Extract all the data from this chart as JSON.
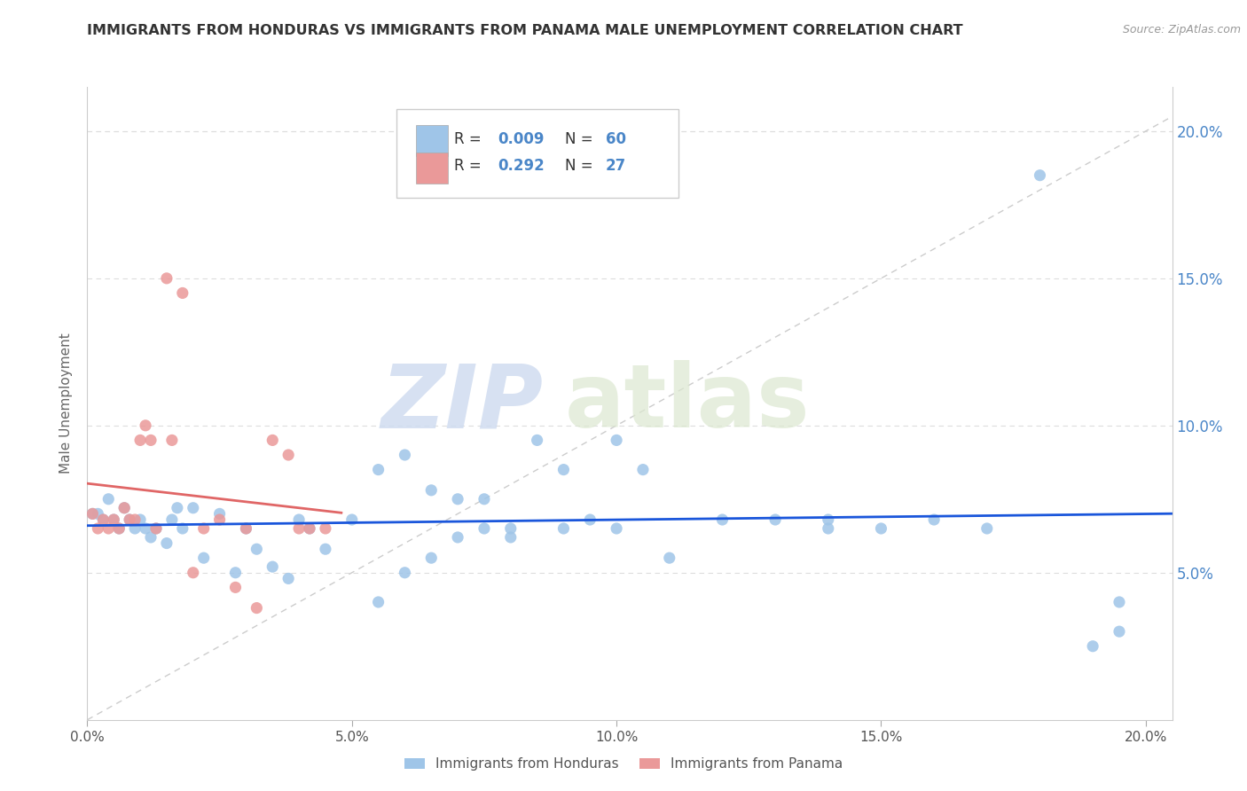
{
  "title": "IMMIGRANTS FROM HONDURAS VS IMMIGRANTS FROM PANAMA MALE UNEMPLOYMENT CORRELATION CHART",
  "source": "Source: ZipAtlas.com",
  "ylabel": "Male Unemployment",
  "xlim": [
    0.0,
    0.205
  ],
  "ylim": [
    0.0,
    0.215
  ],
  "xtick_vals": [
    0.0,
    0.05,
    0.1,
    0.15,
    0.2
  ],
  "xtick_labels": [
    "0.0%",
    "5.0%",
    "10.0%",
    "15.0%",
    "20.0%"
  ],
  "ytick_vals": [
    0.05,
    0.1,
    0.15,
    0.2
  ],
  "ytick_labels": [
    "5.0%",
    "10.0%",
    "15.0%",
    "20.0%"
  ],
  "color_honduras": "#9fc5e8",
  "color_panama": "#ea9999",
  "trendline_blue": "#1a56db",
  "trendline_pink": "#e06666",
  "diagonal_color": "#cccccc",
  "watermark_zip": "ZIP",
  "watermark_atlas": "atlas",
  "watermark_color": "#cdd9f0",
  "legend_r1_label": "R = ",
  "legend_r1_val": "0.009",
  "legend_n1_label": "N = ",
  "legend_n1_val": "60",
  "legend_r2_label": "R = ",
  "legend_r2_val": "0.292",
  "legend_n2_label": "N = ",
  "legend_n2_val": "27",
  "label_color": "#4a86c8",
  "series1_label": "Immigrants from Honduras",
  "series2_label": "Immigrants from Panama",
  "honduras_x": [
    0.001,
    0.002,
    0.003,
    0.004,
    0.005,
    0.006,
    0.007,
    0.008,
    0.009,
    0.01,
    0.011,
    0.012,
    0.013,
    0.015,
    0.016,
    0.017,
    0.018,
    0.02,
    0.022,
    0.025,
    0.028,
    0.03,
    0.032,
    0.035,
    0.038,
    0.04,
    0.042,
    0.045,
    0.05,
    0.055,
    0.06,
    0.065,
    0.07,
    0.075,
    0.08,
    0.085,
    0.09,
    0.095,
    0.1,
    0.105,
    0.11,
    0.12,
    0.13,
    0.14,
    0.15,
    0.16,
    0.17,
    0.18,
    0.19,
    0.195,
    0.055,
    0.06,
    0.065,
    0.07,
    0.075,
    0.08,
    0.09,
    0.1,
    0.14,
    0.195
  ],
  "honduras_y": [
    0.07,
    0.07,
    0.068,
    0.075,
    0.068,
    0.065,
    0.072,
    0.068,
    0.065,
    0.068,
    0.065,
    0.062,
    0.065,
    0.06,
    0.068,
    0.072,
    0.065,
    0.072,
    0.055,
    0.07,
    0.05,
    0.065,
    0.058,
    0.052,
    0.048,
    0.068,
    0.065,
    0.058,
    0.068,
    0.085,
    0.09,
    0.078,
    0.075,
    0.065,
    0.062,
    0.095,
    0.085,
    0.068,
    0.095,
    0.085,
    0.055,
    0.068,
    0.068,
    0.068,
    0.065,
    0.068,
    0.065,
    0.185,
    0.025,
    0.03,
    0.04,
    0.05,
    0.055,
    0.062,
    0.075,
    0.065,
    0.065,
    0.065,
    0.065,
    0.04
  ],
  "panama_x": [
    0.001,
    0.002,
    0.003,
    0.004,
    0.005,
    0.006,
    0.007,
    0.008,
    0.009,
    0.01,
    0.011,
    0.012,
    0.013,
    0.015,
    0.016,
    0.018,
    0.02,
    0.022,
    0.025,
    0.028,
    0.03,
    0.032,
    0.035,
    0.038,
    0.04,
    0.042,
    0.045
  ],
  "panama_y": [
    0.07,
    0.065,
    0.068,
    0.065,
    0.068,
    0.065,
    0.072,
    0.068,
    0.068,
    0.095,
    0.1,
    0.095,
    0.065,
    0.15,
    0.095,
    0.145,
    0.05,
    0.065,
    0.068,
    0.045,
    0.065,
    0.038,
    0.095,
    0.09,
    0.065,
    0.065,
    0.065
  ]
}
